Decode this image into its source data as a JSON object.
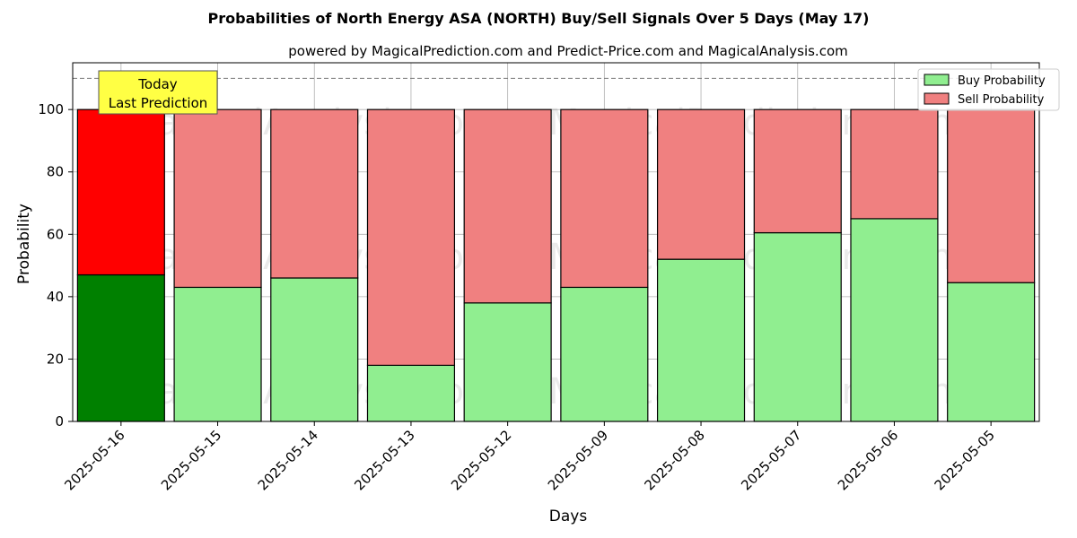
{
  "chart_data": {
    "type": "bar",
    "title": "Probabilities of North Energy ASA (NORTH) Buy/Sell Signals Over 5 Days (May 17)",
    "subtitle": "powered by MagicalPrediction.com and Predict-Price.com and MagicalAnalysis.com",
    "xlabel": "Days",
    "ylabel": "Probability",
    "ylim": [
      0,
      115
    ],
    "yticks": [
      0,
      20,
      40,
      60,
      80,
      100
    ],
    "stacked": true,
    "grid": true,
    "legend_position": "top-right",
    "categories": [
      "2025-05-16",
      "2025-05-15",
      "2025-05-14",
      "2025-05-13",
      "2025-05-12",
      "2025-05-09",
      "2025-05-08",
      "2025-05-07",
      "2025-05-06",
      "2025-05-05"
    ],
    "series": [
      {
        "name": "Buy Probability",
        "color": "#90ee90",
        "highlight_color": "#008000",
        "values": [
          47,
          43,
          46,
          18,
          38,
          43,
          52,
          60.5,
          65,
          44.5
        ]
      },
      {
        "name": "Sell Probability",
        "color": "#f08080",
        "highlight_color": "#ff0000",
        "values": [
          53,
          57,
          54,
          82,
          62,
          57,
          48,
          39.5,
          35,
          55.5
        ]
      }
    ],
    "reference_line": 110,
    "annotation": {
      "line1": "Today",
      "line2": "Last Prediction",
      "color": "#ffff44"
    },
    "watermarks": [
      "MagicalAnalysis.com",
      "MagicalPrediction.com"
    ]
  }
}
